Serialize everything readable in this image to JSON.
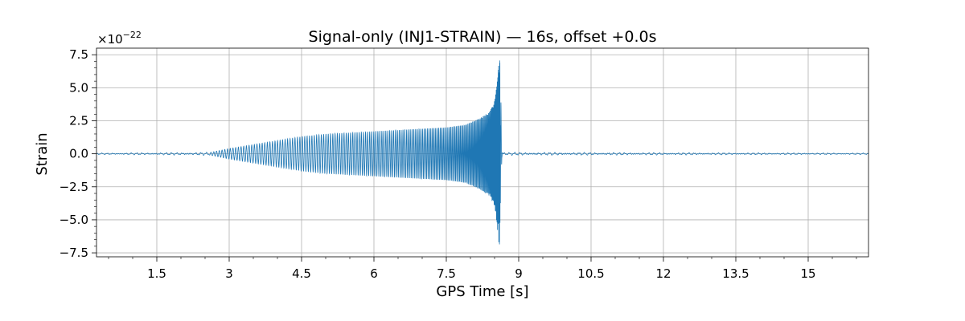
{
  "chart_data": {
    "type": "line",
    "title": "Signal-only (INJ1-STRAIN) — 16s, offset +0.0s",
    "xlabel": "GPS Time [s]",
    "ylabel": "Strain",
    "y_multiplier_base": "×10",
    "y_multiplier_exponent": "−22",
    "xlim": [
      0.25,
      16.25
    ],
    "ylim": [
      -7.8,
      8.0
    ],
    "x_ticks": [
      1.5,
      3,
      4.5,
      6,
      7.5,
      9,
      10.5,
      12,
      13.5,
      15
    ],
    "x_tick_labels": [
      "1.5",
      "3",
      "4.5",
      "6",
      "7.5",
      "9",
      "10.5",
      "12",
      "13.5",
      "15"
    ],
    "y_ticks": [
      -7.5,
      -5.0,
      -2.5,
      0.0,
      2.5,
      5.0,
      7.5
    ],
    "y_tick_labels": [
      "−7.5",
      "−5.0",
      "−2.5",
      "0.0",
      "2.5",
      "5.0",
      "7.5"
    ],
    "grid": true,
    "line_color": "#1f77b4",
    "series": [
      {
        "x": [
          0.25,
          2.6,
          3.0,
          3.5,
          4.0,
          4.5,
          5.0,
          5.5,
          6.0,
          6.5,
          7.0,
          7.5,
          7.9,
          8.2,
          8.4,
          8.5,
          8.55,
          8.6,
          8.62,
          8.65,
          8.7,
          16.25
        ],
        "y_envelope": [
          0.05,
          0.1,
          0.4,
          0.7,
          1.0,
          1.3,
          1.5,
          1.6,
          1.7,
          1.8,
          1.9,
          2.0,
          2.2,
          2.7,
          3.2,
          4.0,
          5.3,
          7.4,
          6.5,
          0.3,
          0.1,
          0.05
        ]
      }
    ]
  }
}
